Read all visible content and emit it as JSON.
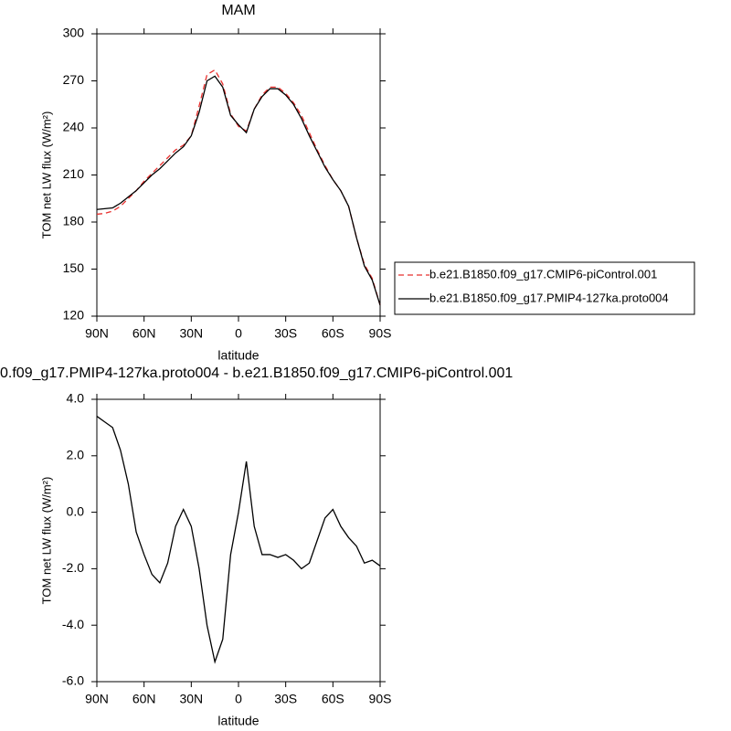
{
  "chart_data": [
    {
      "type": "line",
      "title": "MAM",
      "xlabel": "latitude",
      "ylabel": "TOM net LW flux (W/m²)",
      "x": [
        90,
        85,
        80,
        75,
        70,
        65,
        60,
        55,
        50,
        45,
        40,
        35,
        30,
        25,
        20,
        15,
        10,
        5,
        0,
        -5,
        -10,
        -15,
        -20,
        -25,
        -30,
        -35,
        -40,
        -45,
        -50,
        -55,
        -60,
        -65,
        -70,
        -75,
        -80,
        -85,
        -90
      ],
      "xlim": [
        90,
        -90
      ],
      "xticks": [
        {
          "value": 90,
          "label": "90N"
        },
        {
          "value": 60,
          "label": "60N"
        },
        {
          "value": 30,
          "label": "30N"
        },
        0,
        {
          "value": -30,
          "label": "30S"
        },
        {
          "value": -60,
          "label": "60S"
        },
        {
          "value": -90,
          "label": "90S"
        }
      ],
      "ylim": [
        120,
        300
      ],
      "yticks": [
        120,
        150,
        180,
        210,
        240,
        270,
        300
      ],
      "legend": "right",
      "series": [
        {
          "name": "b.e21.B1850.f09_g17.CMIP6-piControl.001",
          "color": "#e8302e",
          "linestyle": "dashed",
          "values": [
            185,
            185.5,
            187,
            190,
            195,
            200,
            206,
            211,
            216,
            221,
            226,
            229,
            235,
            254,
            274,
            277,
            268,
            249,
            241,
            238,
            252,
            261,
            266,
            266,
            262,
            256,
            248,
            237,
            226,
            216,
            207,
            200,
            190,
            170,
            153,
            144,
            127
          ]
        },
        {
          "name": "b.e21.B1850.f09_g17.PMIP4-127ka.proto004",
          "color": "#000000",
          "linestyle": "solid",
          "values": [
            188,
            188.5,
            189,
            192,
            196,
            200,
            205,
            210,
            214,
            219,
            224,
            228,
            235,
            250,
            270,
            273,
            266,
            248,
            242,
            237,
            252,
            260,
            265,
            265,
            261,
            255,
            246,
            235,
            225,
            215,
            207,
            200,
            190,
            170,
            152,
            143,
            127
          ]
        }
      ]
    },
    {
      "type": "line",
      "title": "0.f09_g17.PMIP4-127ka.proto004 - b.e21.B1850.f09_g17.CMIP6-piControl.001",
      "xlabel": "latitude",
      "ylabel": "TOM net LW flux (W/m²)",
      "x": [
        90,
        85,
        80,
        75,
        70,
        65,
        60,
        55,
        50,
        45,
        40,
        35,
        30,
        25,
        20,
        15,
        10,
        5,
        0,
        -5,
        -10,
        -15,
        -20,
        -25,
        -30,
        -35,
        -40,
        -45,
        -50,
        -55,
        -60,
        -65,
        -70,
        -75,
        -80,
        -85,
        -90
      ],
      "xlim": [
        90,
        -90
      ],
      "xticks": [
        {
          "value": 90,
          "label": "90N"
        },
        {
          "value": 60,
          "label": "60N"
        },
        {
          "value": 30,
          "label": "30N"
        },
        0,
        {
          "value": -30,
          "label": "30S"
        },
        {
          "value": -60,
          "label": "60S"
        },
        {
          "value": -90,
          "label": "90S"
        }
      ],
      "ylim": [
        -6,
        4
      ],
      "yticks": [
        {
          "value": -6,
          "label": "-6.0"
        },
        {
          "value": -4,
          "label": "-4.0"
        },
        {
          "value": -2,
          "label": "-2.0"
        },
        {
          "value": 0,
          "label": "0.0"
        },
        {
          "value": 2,
          "label": "2.0"
        },
        {
          "value": 4,
          "label": "4.0"
        }
      ],
      "series": [
        {
          "color": "#000000",
          "linestyle": "solid",
          "values": [
            3.4,
            3.2,
            3.0,
            2.2,
            1.0,
            -0.7,
            -1.5,
            -2.2,
            -2.5,
            -1.8,
            -0.5,
            0.1,
            -0.5,
            -2.0,
            -4.0,
            -5.3,
            -4.5,
            -1.5,
            0.0,
            1.8,
            -0.5,
            -1.5,
            -1.5,
            -1.6,
            -1.5,
            -1.7,
            -2.0,
            -1.8,
            -1.0,
            -0.2,
            0.1,
            -0.5,
            -0.9,
            -1.2,
            -1.8,
            -1.7,
            -1.9
          ]
        }
      ]
    }
  ]
}
